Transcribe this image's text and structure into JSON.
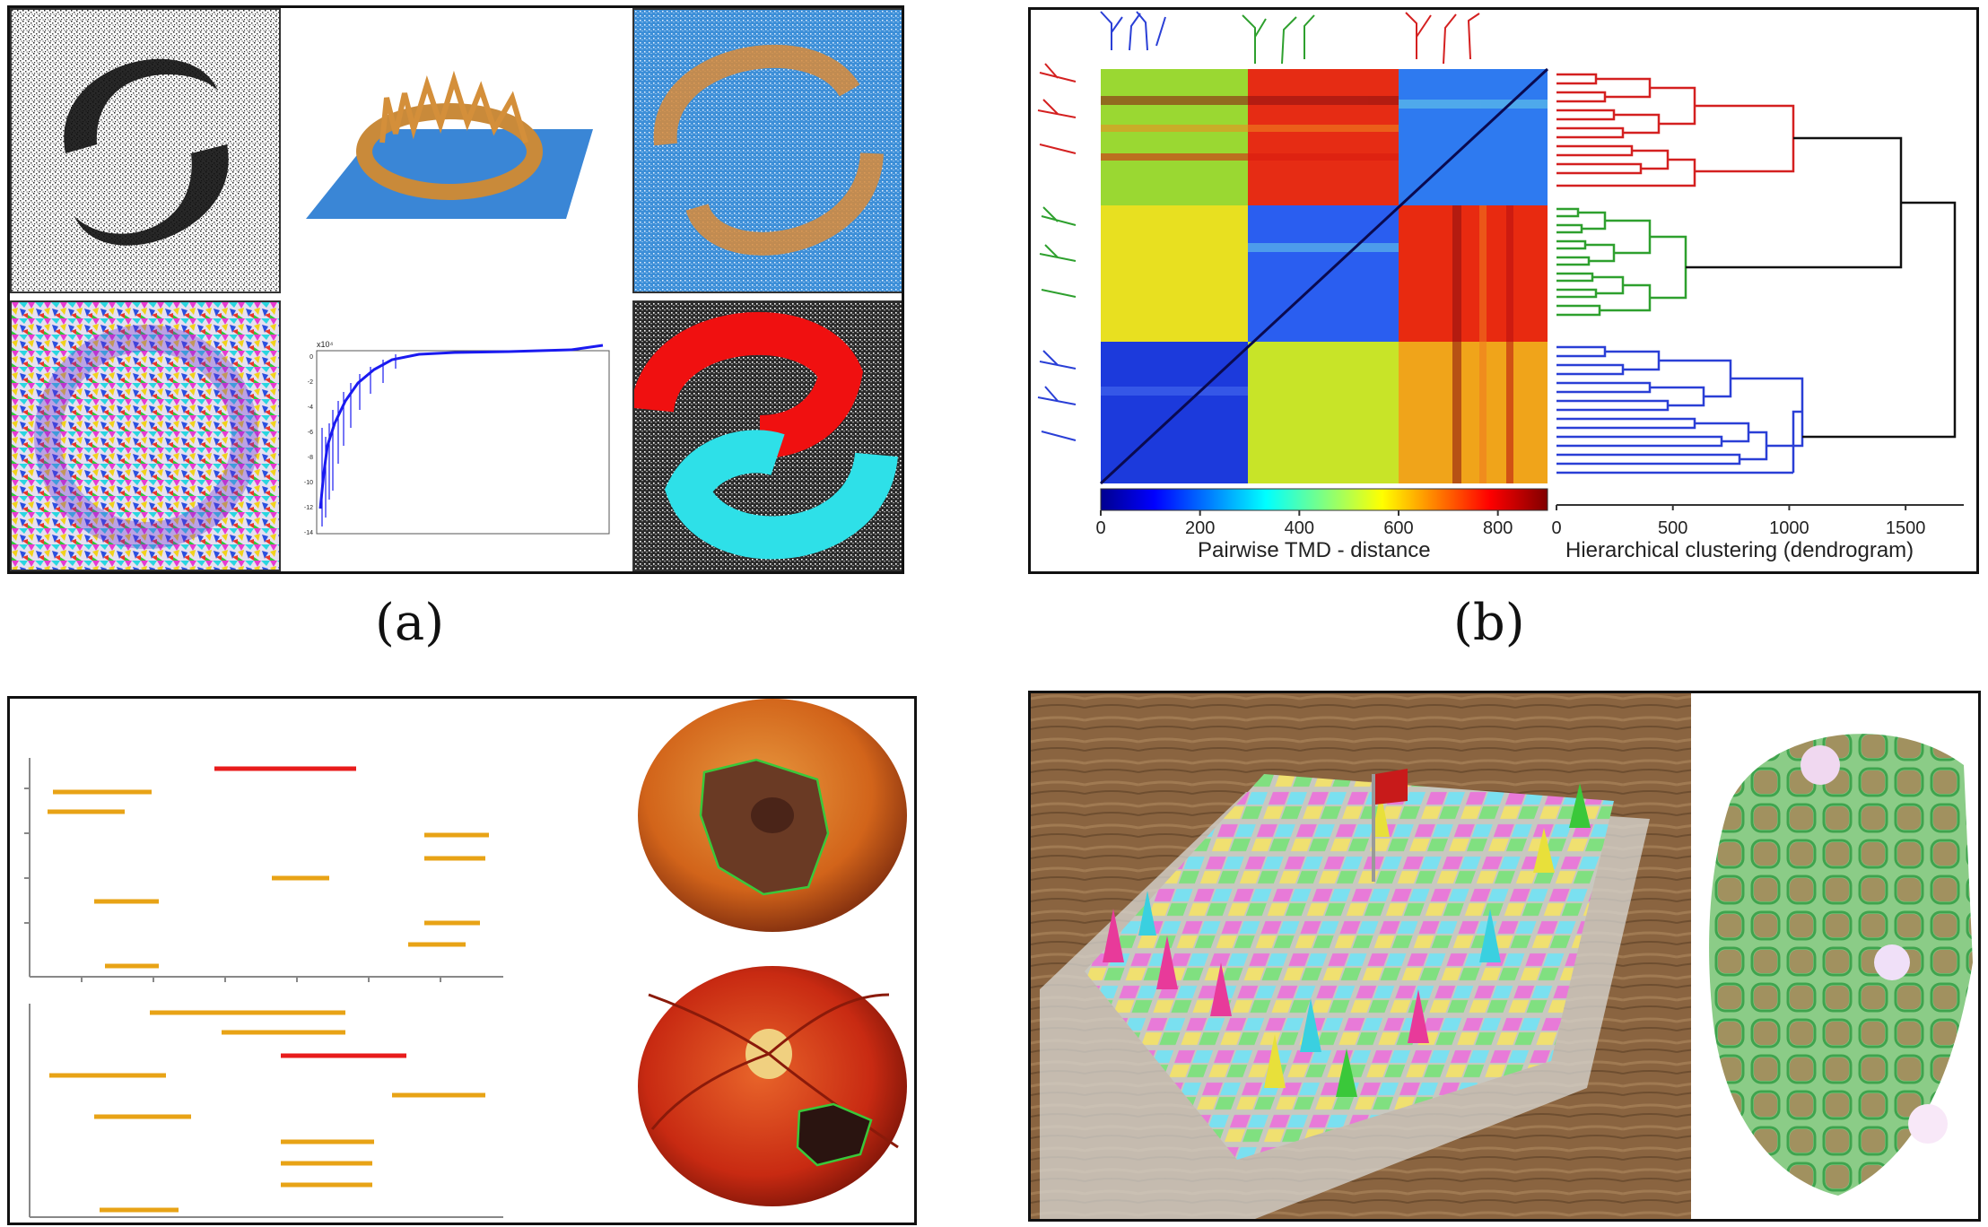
{
  "captions": {
    "a": "(a)",
    "b": "(b)"
  },
  "panel_b": {
    "colorbar_ticks": [
      "0",
      "200",
      "400",
      "600",
      "800"
    ],
    "colorbar_label": "Pairwise TMD - distance",
    "dendro_ticks": [
      "0",
      "500",
      "1000",
      "1500"
    ],
    "dendro_label": "Hierarchical clustering (dendrogram)"
  },
  "panel_a": {
    "plot_exponent_label": "x10⁴",
    "plot_y_ticks": [
      "0",
      "-2",
      "-4",
      "-6",
      "-8",
      "-10",
      "-12",
      "-14"
    ]
  },
  "colors": {
    "cluster_red": "#d42020",
    "cluster_green": "#2ea02e",
    "cluster_blue": "#2a3fd6",
    "dendro_link": "#111111",
    "interval_orange": "#e8a316",
    "interval_red": "#e81c1c"
  }
}
